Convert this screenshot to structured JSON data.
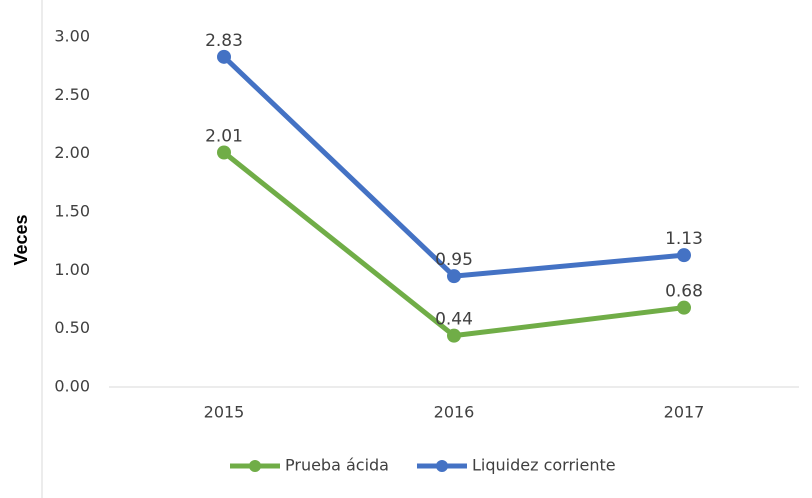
{
  "chart_data": {
    "type": "line",
    "ylabel": "Veces",
    "categories": [
      "2015",
      "2016",
      "2017"
    ],
    "series": [
      {
        "name": "Prueba ácida",
        "color": "#70ad47",
        "values": [
          2.01,
          0.44,
          0.68
        ]
      },
      {
        "name": "Liquidez corriente",
        "color": "#4472c4",
        "values": [
          2.83,
          0.95,
          1.13
        ]
      }
    ],
    "ylim": [
      0,
      3
    ],
    "yticks": [
      {
        "value": 0,
        "label": "0.00"
      },
      {
        "value": 0.5,
        "label": "0.50"
      },
      {
        "value": 1,
        "label": "1.00"
      },
      {
        "value": 1.5,
        "label": "1.50"
      },
      {
        "value": 2,
        "label": "2.00"
      },
      {
        "value": 2.5,
        "label": "2.50"
      },
      {
        "value": 3,
        "label": "3.00"
      }
    ],
    "grid": false,
    "legend": "bottom"
  }
}
